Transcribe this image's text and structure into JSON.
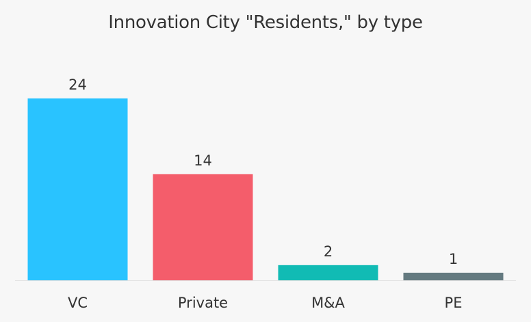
{
  "chart_data": {
    "type": "bar",
    "title": "Innovation City \"Residents,\" by type",
    "categories": [
      "VC",
      "Private",
      "M&A",
      "PE"
    ],
    "values": [
      24,
      14,
      2,
      1
    ],
    "colors": [
      "#29c3ff",
      "#f45d6b",
      "#11bbb4",
      "#647a80"
    ],
    "xlabel": "",
    "ylabel": "",
    "ylim": [
      0,
      24
    ],
    "grid": false,
    "legend": "none",
    "data_labels": true
  },
  "style": {
    "background": "#f7f7f7",
    "baseline_color": "#e2e2e2",
    "text_color": "#333333"
  }
}
